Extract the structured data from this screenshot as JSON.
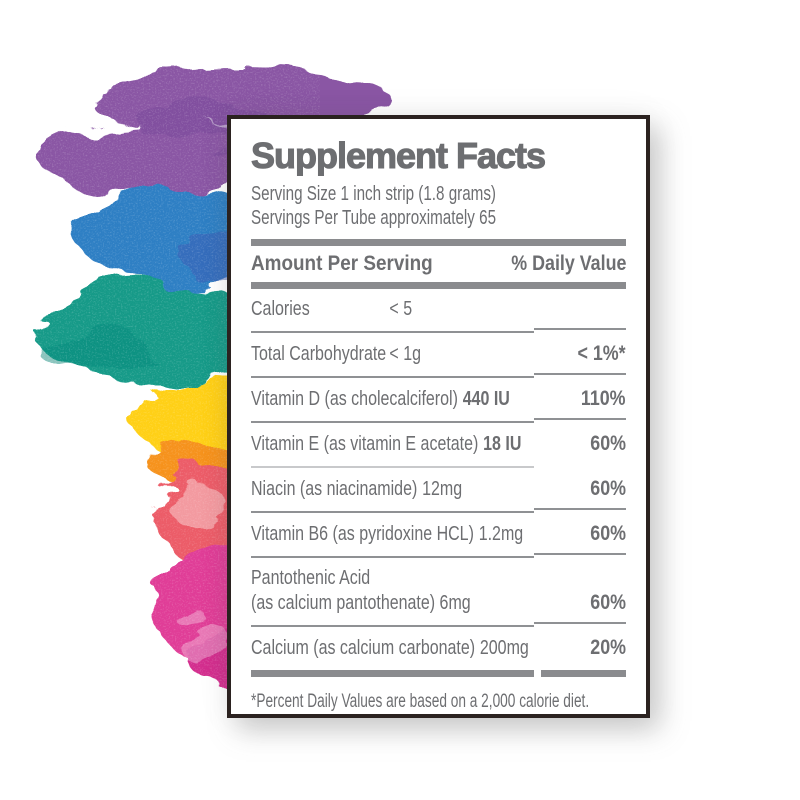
{
  "label": {
    "title": "Supplement Facts",
    "serving_size": "Serving Size 1 inch strip (1.8 grams)",
    "servings_per_tube": "Servings Per Tube approximately 65",
    "header": {
      "amount": "Amount Per Serving",
      "dv": "% Daily Value"
    },
    "rows": [
      {
        "name": "Calories",
        "amount": "< 5",
        "dv": "",
        "wide_name": true,
        "sep": "split"
      },
      {
        "name": "Total Carbohydrate",
        "amount": "< 1g",
        "dv": "< 1%*",
        "wide_name": true,
        "sep": "split"
      },
      {
        "name": "Vitamin D (as cholecalciferol)",
        "amount": "440 IU",
        "amount_bold": true,
        "dv": "110%",
        "sep": "split"
      },
      {
        "name": "Vitamin E (as vitamin E acetate)",
        "amount": "18 IU",
        "amount_bold": true,
        "dv": "60%",
        "sep": "light"
      },
      {
        "name": "Niacin (as niacinamide)",
        "amount": "12mg",
        "dv": "60%",
        "sep": "split"
      },
      {
        "name": "Vitamin B6 (as pyridoxine HCL)",
        "amount": "1.2mg",
        "dv": "60%",
        "sep": "split"
      },
      {
        "name": "Pantothenic Acid",
        "name_line2": "(as calcium pantothenate) 6mg",
        "amount": "",
        "dv": "60%",
        "sep": "split"
      },
      {
        "name": "Calcium (as calcium carbonate)",
        "amount": "200mg",
        "dv": "20%",
        "sep": "thick"
      }
    ],
    "footnote": "*Percent Daily Values are based on a 2,000 calorie diet."
  },
  "art": {
    "colors": {
      "purple": "#8a57a4",
      "purple_dark": "#7a4a9b",
      "blue": "#2f7fc4",
      "blue_dark": "#3c5cb3",
      "teal": "#129a88",
      "teal_dark": "#0e8a7b",
      "yellow": "#ffd013",
      "orange": "#f6921e",
      "coral": "#ec5c67",
      "pink": "#e03e97",
      "pink_deep": "#d32e8e",
      "wash": "#ffffff"
    }
  },
  "panel_colors": {
    "ink": "#6d6e71",
    "rule": "#8f9194",
    "rule_light": "#c8c9cb",
    "bar": "#8a8b8e",
    "border": "#2b2220"
  }
}
